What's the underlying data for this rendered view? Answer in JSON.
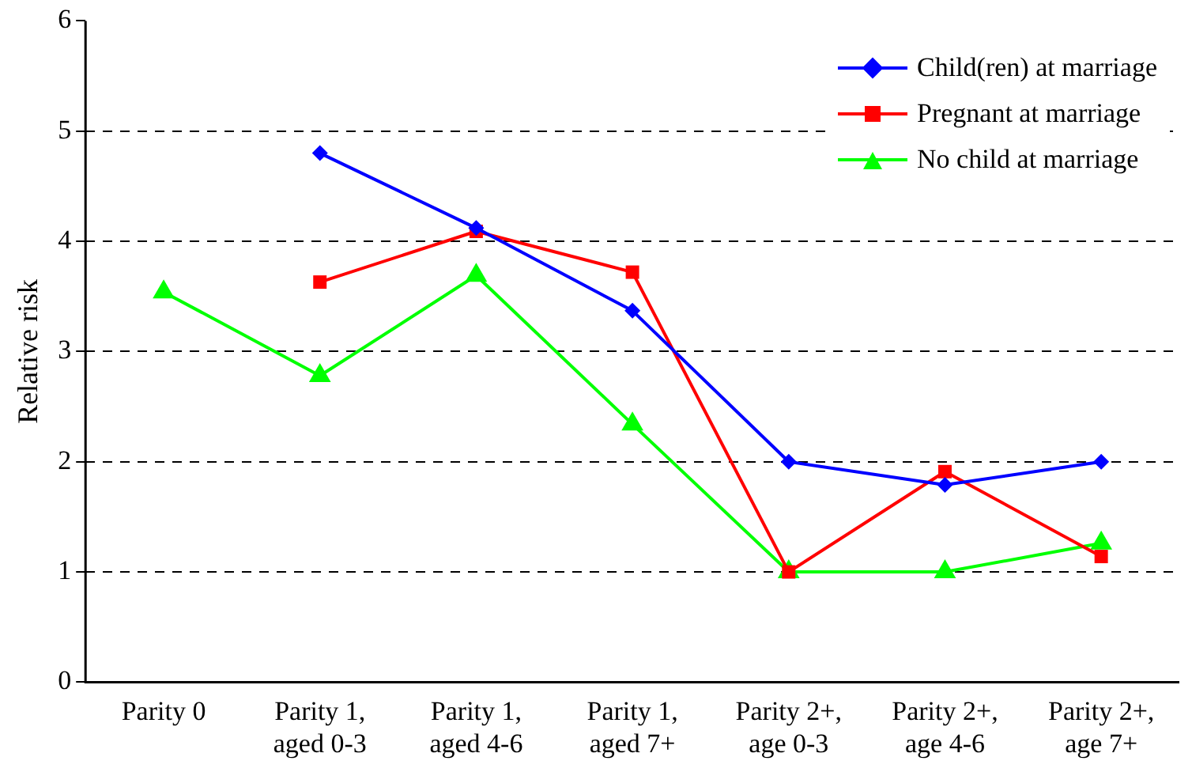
{
  "chart_data": {
    "type": "line",
    "ylabel": "Relative risk",
    "categories": [
      "Parity 0",
      "Parity 1,\naged 0-3",
      "Parity 1,\naged 4-6",
      "Parity 1,\naged 7+",
      "Parity 2+,\nage 0-3",
      "Parity 2+,\nage 4-6",
      "Parity 2+,\nage 7+"
    ],
    "series": [
      {
        "name": "Child(ren) at marriage",
        "color": "#0000ff",
        "marker": "diamond",
        "values": [
          null,
          4.8,
          4.12,
          3.37,
          2.0,
          1.79,
          2.0
        ]
      },
      {
        "name": "Pregnant at marriage",
        "color": "#ff0000",
        "marker": "square",
        "values": [
          null,
          3.63,
          4.09,
          3.72,
          1.0,
          1.91,
          1.14
        ]
      },
      {
        "name": "No child at marriage",
        "color": "#00ff00",
        "marker": "triangle",
        "values": [
          3.54,
          2.78,
          3.69,
          2.34,
          1.0,
          1.0,
          1.26
        ]
      }
    ],
    "ylim": [
      0,
      6
    ],
    "yticks": [
      0,
      1,
      2,
      3,
      4,
      5,
      6
    ],
    "grid": "y",
    "legend": "top right",
    "line_style": "solid"
  }
}
